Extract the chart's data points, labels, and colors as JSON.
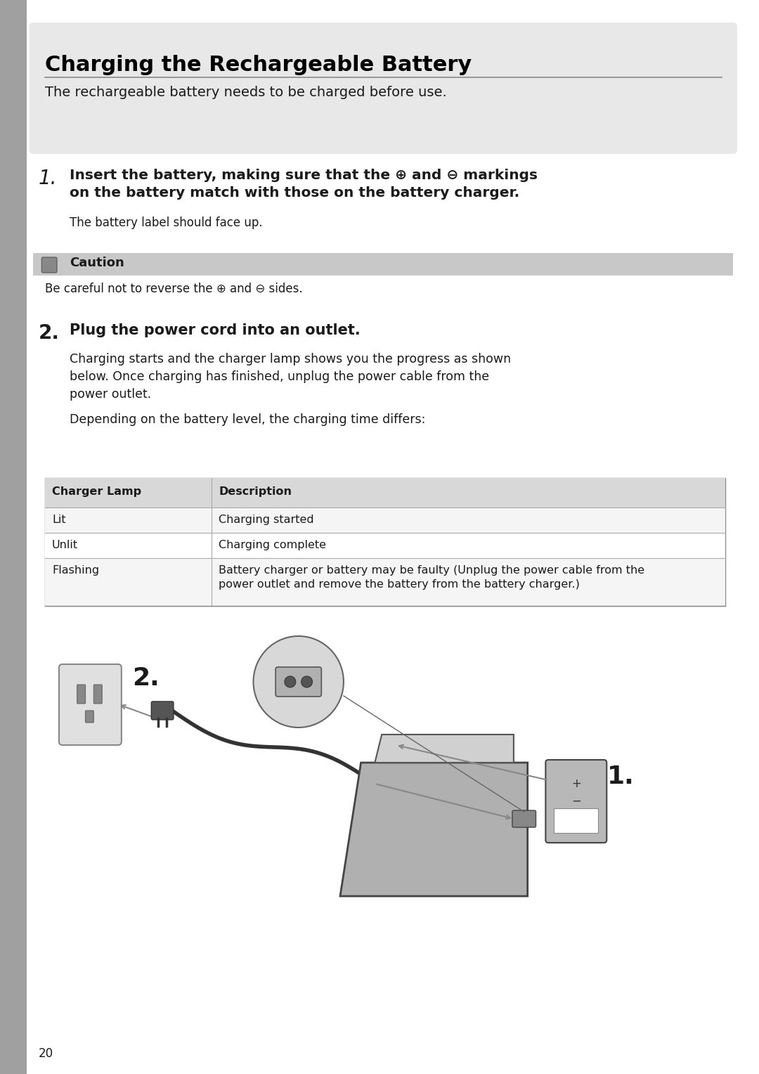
{
  "page_bg": "#ffffff",
  "left_margin_bg": "#d0d0d0",
  "title": "Charging the Rechargeable Battery",
  "title_bg": "#e8e8e8",
  "intro_text": "The rechargeable battery needs to be charged before use.",
  "step1_num": "1.",
  "step1_bold": "Insert the battery, making sure that the ⊕ and ⊖ markings\non the battery match with those on the battery charger.",
  "step1_sub": "The battery label should face up.",
  "caution_label": "Caution",
  "caution_bg": "#c8c8c8",
  "caution_text": "Be careful not to reverse the ⊕ and ⊖ sides.",
  "step2_num": "2.",
  "step2_bold": "Plug the power cord into an outlet.",
  "step2_body1": "Charging starts and the charger lamp shows you the progress as shown\nbelow. Once charging has finished, unplug the power cable from the\npower outlet.",
  "step2_body2": "Depending on the battery level, the charging time differs:",
  "table_header_bg": "#d8d8d8",
  "table_row_bg1": "#ffffff",
  "table_row_bg2": "#f0f0f0",
  "table_col1_header": "Charger Lamp",
  "table_col2_header": "Description",
  "table_rows": [
    [
      "Lit",
      "Charging started"
    ],
    [
      "Unlit",
      "Charging complete"
    ],
    [
      "Flashing",
      "Battery charger or battery may be faulty (Unplug the power cable from the\npower outlet and remove the battery from the battery charger.)"
    ]
  ],
  "page_number": "20",
  "body_color": "#1a1a1a",
  "title_color": "#000000",
  "left_bar_color": "#a0a0a0"
}
